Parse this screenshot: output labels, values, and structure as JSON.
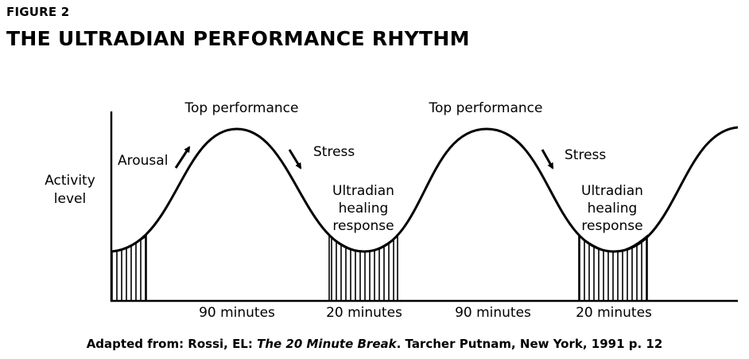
{
  "figure_label": "FIGURE 2",
  "title": "THE ULTRADIAN PERFORMANCE RHYTHM",
  "axis": {
    "y_label_line1": "Activity",
    "y_label_line2": "level"
  },
  "annotations": {
    "arousal": "Arousal",
    "top_performance_1": "Top performance",
    "top_performance_2": "Top performance",
    "stress_1": "Stress",
    "stress_2": "Stress",
    "healing_1": [
      "Ultradian",
      "healing",
      "response"
    ],
    "healing_2": [
      "Ultradian",
      "healing",
      "response"
    ]
  },
  "durations": [
    "90 minutes",
    "20 minutes",
    "90 minutes",
    "20 minutes"
  ],
  "credit": {
    "prefix": "Adapted from: Rossi, EL: ",
    "book": "The 20 Minute Break",
    "suffix": ". Tarcher Putnam, New York, 1991 p. 12"
  }
}
